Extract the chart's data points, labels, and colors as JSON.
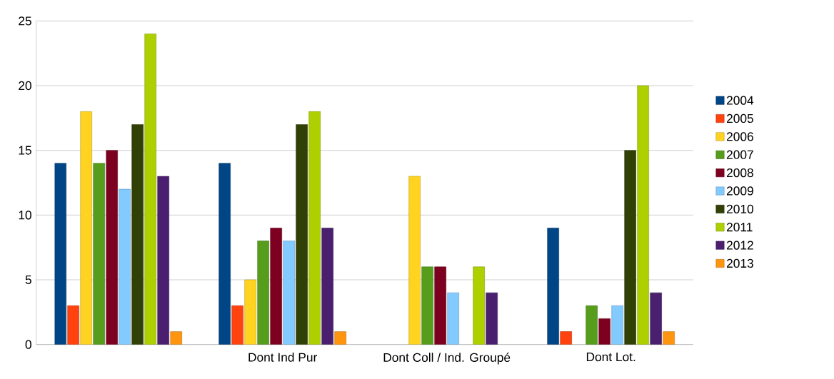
{
  "chart_data": {
    "type": "bar",
    "categories": [
      null,
      "Dont Ind Pur",
      "Dont Coll / Ind. Groupé",
      "Dont Lot."
    ],
    "series": [
      {
        "name": "2004",
        "color": "#004586",
        "values": [
          14,
          14,
          null,
          9
        ]
      },
      {
        "name": "2005",
        "color": "#ff420e",
        "values": [
          3,
          3,
          null,
          1
        ]
      },
      {
        "name": "2006",
        "color": "#ffd320",
        "values": [
          18,
          5,
          13,
          null
        ]
      },
      {
        "name": "2007",
        "color": "#579d1c",
        "values": [
          14,
          8,
          6,
          3
        ]
      },
      {
        "name": "2008",
        "color": "#7e0021",
        "values": [
          15,
          9,
          6,
          2
        ]
      },
      {
        "name": "2009",
        "color": "#83caff",
        "values": [
          12,
          8,
          4,
          3
        ]
      },
      {
        "name": "2010",
        "color": "#314004",
        "values": [
          17,
          17,
          null,
          15
        ]
      },
      {
        "name": "2011",
        "color": "#aecf00",
        "values": [
          24,
          18,
          6,
          20
        ]
      },
      {
        "name": "2012",
        "color": "#4b1f6f",
        "values": [
          13,
          9,
          4,
          4
        ]
      },
      {
        "name": "2013",
        "color": "#ff950e",
        "values": [
          1,
          1,
          null,
          1
        ]
      }
    ],
    "ylim": [
      0,
      25
    ],
    "yticks": [
      0,
      5,
      10,
      15,
      20,
      25
    ],
    "grid": "y",
    "legend": "right"
  }
}
